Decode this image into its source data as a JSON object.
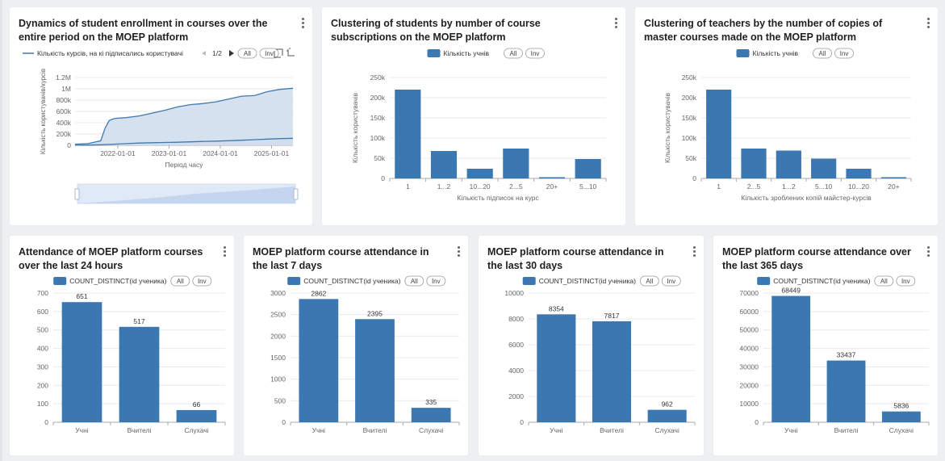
{
  "menu_icon": "vertical-ellipsis-icon",
  "colors": {
    "bar": "#3b77b0",
    "area_fill": "#cfdcec",
    "line": "#3f79ad",
    "grid": "#e9e9e9",
    "axis": "#aaaaaa",
    "text": "#666666"
  },
  "legend_buttons": {
    "all": "All",
    "inv": "Inv"
  },
  "enrollment": {
    "title": "Dynamics of student enrollment in courses over the entire period on the MOEP platform",
    "legend": "Кількість курсів, на кі підписались користувачі",
    "page": "1/2"
  },
  "chart_data": [
    {
      "type": "area",
      "title": "Dynamics of student enrollment in courses over the entire period on the MOEP platform",
      "xlabel": "Період часу",
      "ylabel": "Кількість користувачів/курсів",
      "yticks": [
        "0",
        "200k",
        "400k",
        "600k",
        "800k",
        "1M",
        "1.2M"
      ],
      "ylim": [
        0,
        1200000
      ],
      "xticks": [
        "2022-01-01",
        "2023-01-01",
        "2024-01-01",
        "2025-01-01"
      ],
      "legend_entry": "Кількість курсів, на кі підписались користувачі",
      "series": [
        {
          "x": [
            "2021-03",
            "2021-06",
            "2021-09",
            "2021-10",
            "2021-11",
            "2021-12",
            "2022-01",
            "2022-03",
            "2022-06",
            "2022-09",
            "2022-12",
            "2023-03",
            "2023-06",
            "2023-09",
            "2023-12",
            "2024-03",
            "2024-06",
            "2024-09",
            "2024-12",
            "2025-03",
            "2025-06"
          ],
          "values": [
            20000,
            30000,
            80000,
            300000,
            440000,
            470000,
            480000,
            490000,
            520000,
            570000,
            620000,
            680000,
            720000,
            740000,
            770000,
            820000,
            870000,
            880000,
            950000,
            990000,
            1010000
          ]
        },
        {
          "x": [
            "2021-03",
            "2021-06",
            "2021-09",
            "2021-12",
            "2022-03",
            "2022-06",
            "2022-09",
            "2022-12",
            "2023-03",
            "2023-06",
            "2023-09",
            "2023-12",
            "2024-03",
            "2024-06",
            "2024-09",
            "2024-12",
            "2025-03",
            "2025-06"
          ],
          "values": [
            2000,
            5000,
            10000,
            20000,
            30000,
            40000,
            45000,
            50000,
            55000,
            62000,
            68000,
            75000,
            82000,
            90000,
            100000,
            110000,
            118000,
            125000
          ]
        }
      ]
    },
    {
      "type": "bar",
      "title": "Clustering of students by number of course subscriptions on the MOEP platform",
      "legend": "Кількість учнів",
      "xlabel": "Кількість підписок на курс",
      "ylabel": "Кількість користувачів",
      "categories": [
        "1",
        "1...2",
        "10...20",
        "2...5",
        "20+",
        "5...10"
      ],
      "values": [
        220000,
        68000,
        24000,
        74000,
        3000,
        48000
      ],
      "yticks": [
        "0",
        "50k",
        "100k",
        "150k",
        "200k",
        "250k"
      ],
      "ylim": [
        0,
        250000
      ]
    },
    {
      "type": "bar",
      "title": "Clustering of teachers by the number of copies of master courses made on the MOEP platform",
      "legend": "Кількість учнів",
      "xlabel": "Кількість зроблених копій майстер-курсів",
      "ylabel": "Кількість користувачів",
      "categories": [
        "1",
        "2...5",
        "1...2",
        "5...10",
        "10...20",
        "20+"
      ],
      "values": [
        220000,
        74000,
        69000,
        49000,
        24000,
        3000
      ],
      "yticks": [
        "0",
        "50k",
        "100k",
        "150k",
        "200k",
        "250k"
      ],
      "ylim": [
        0,
        250000
      ]
    },
    {
      "type": "bar",
      "title": "Attendance of MOEP platform courses over the last 24 hours",
      "legend": "COUNT_DISTINCT(id ученика)",
      "categories": [
        "Учні",
        "Вчителі",
        "Слухачі"
      ],
      "values": [
        651,
        517,
        66
      ],
      "labels": [
        "651",
        "517",
        "66"
      ],
      "yticks": [
        "0",
        "100",
        "200",
        "300",
        "400",
        "500",
        "600",
        "700"
      ],
      "ylim": [
        0,
        700
      ]
    },
    {
      "type": "bar",
      "title": "MOEP platform course attendance in the last 7 days",
      "legend": "COUNT_DISTINCT(id ученика)",
      "categories": [
        "Учні",
        "Вчителі",
        "Слухачі"
      ],
      "values": [
        2862,
        2395,
        335
      ],
      "labels": [
        "2862",
        "2395",
        "335"
      ],
      "yticks": [
        "0",
        "500",
        "1000",
        "1500",
        "2000",
        "2500",
        "3000"
      ],
      "ylim": [
        0,
        3000
      ]
    },
    {
      "type": "bar",
      "title": "MOEP platform course attendance in the last 30 days",
      "legend": "COUNT_DISTINCT(id ученика)",
      "categories": [
        "Учні",
        "Вчителі",
        "Слухачі"
      ],
      "values": [
        8354,
        7817,
        962
      ],
      "labels": [
        "8354",
        "7817",
        "962"
      ],
      "yticks": [
        "0",
        "2000",
        "4000",
        "6000",
        "8000",
        "10000"
      ],
      "ylim": [
        0,
        10000
      ]
    },
    {
      "type": "bar",
      "title": "MOEP platform course attendance over the last 365 days",
      "legend": "COUNT_DISTINCT(id ученика)",
      "categories": [
        "Учні",
        "Вчителі",
        "Слухачі"
      ],
      "values": [
        68449,
        33437,
        5836
      ],
      "labels": [
        "68449",
        "33437",
        "5836"
      ],
      "yticks": [
        "0",
        "10000",
        "20000",
        "30000",
        "40000",
        "50000",
        "60000",
        "70000"
      ],
      "ylim": [
        0,
        70000
      ]
    }
  ]
}
